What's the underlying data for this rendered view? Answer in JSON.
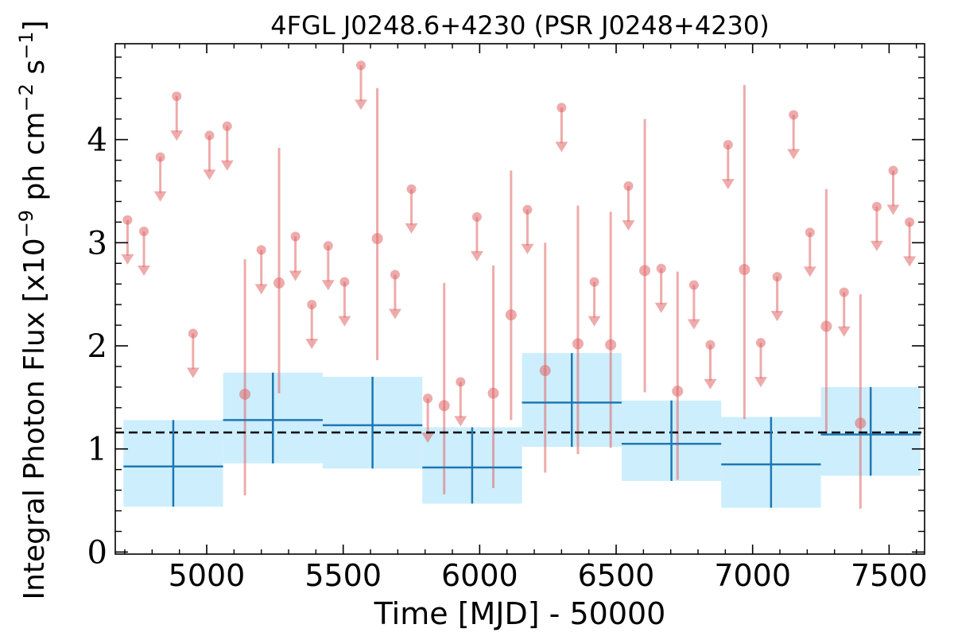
{
  "chart_data": {
    "type": "scatter",
    "title": "4FGL J0248.6+4230 (PSR J0248+4230)",
    "xlabel": "Time [MJD] - 50000",
    "ylabel_prefix": "Integral Photon Flux [x10",
    "ylabel_exp1": "−9",
    "ylabel_mid": " ph cm",
    "ylabel_exp2": "−2",
    "ylabel_mid2": " s",
    "ylabel_exp3": "−1",
    "ylabel_suffix": "]",
    "xlim": [
      4665,
      7630
    ],
    "ylim": [
      -0.02,
      4.93
    ],
    "xticks": [
      5000,
      5500,
      6000,
      6500,
      7000,
      7500
    ],
    "yticks": [
      0,
      1,
      2,
      3,
      4
    ],
    "average_flux": 1.16,
    "long_bins": [
      {
        "x0": 4695,
        "x1": 5060,
        "value": 0.83,
        "low": 0.44,
        "high": 1.28
      },
      {
        "x0": 5060,
        "x1": 5425,
        "value": 1.28,
        "low": 0.86,
        "high": 1.74
      },
      {
        "x0": 5425,
        "x1": 5790,
        "value": 1.23,
        "low": 0.81,
        "high": 1.7
      },
      {
        "x0": 5790,
        "x1": 6155,
        "value": 0.82,
        "low": 0.47,
        "high": 1.21
      },
      {
        "x0": 6155,
        "x1": 6520,
        "value": 1.45,
        "low": 1.02,
        "high": 1.93
      },
      {
        "x0": 6520,
        "x1": 6885,
        "value": 1.05,
        "low": 0.69,
        "high": 1.47
      },
      {
        "x0": 6885,
        "x1": 7250,
        "value": 0.85,
        "low": 0.43,
        "high": 1.31
      },
      {
        "x0": 7250,
        "x1": 7615,
        "value": 1.14,
        "low": 0.74,
        "high": 1.6
      }
    ],
    "upper_limits": [
      {
        "x": 4710,
        "value": 3.22
      },
      {
        "x": 4770,
        "value": 3.11
      },
      {
        "x": 4830,
        "value": 3.83
      },
      {
        "x": 4890,
        "value": 4.42
      },
      {
        "x": 4950,
        "value": 2.12
      },
      {
        "x": 5010,
        "value": 4.04
      },
      {
        "x": 5075,
        "value": 4.13
      },
      {
        "x": 5200,
        "value": 2.93
      },
      {
        "x": 5325,
        "value": 3.06
      },
      {
        "x": 5385,
        "value": 2.4
      },
      {
        "x": 5445,
        "value": 2.97
      },
      {
        "x": 5505,
        "value": 2.62
      },
      {
        "x": 5565,
        "value": 4.72
      },
      {
        "x": 5690,
        "value": 2.69
      },
      {
        "x": 5750,
        "value": 3.52
      },
      {
        "x": 5810,
        "value": 1.49
      },
      {
        "x": 5930,
        "value": 1.65
      },
      {
        "x": 5990,
        "value": 3.25
      },
      {
        "x": 6175,
        "value": 3.32
      },
      {
        "x": 6300,
        "value": 4.31
      },
      {
        "x": 6420,
        "value": 2.62
      },
      {
        "x": 6545,
        "value": 3.55
      },
      {
        "x": 6665,
        "value": 2.75
      },
      {
        "x": 6785,
        "value": 2.59
      },
      {
        "x": 6845,
        "value": 2.01
      },
      {
        "x": 6910,
        "value": 3.95
      },
      {
        "x": 7030,
        "value": 2.03
      },
      {
        "x": 7090,
        "value": 2.67
      },
      {
        "x": 7150,
        "value": 4.24
      },
      {
        "x": 7210,
        "value": 3.1
      },
      {
        "x": 7335,
        "value": 2.52
      },
      {
        "x": 7455,
        "value": 3.35
      },
      {
        "x": 7515,
        "value": 3.7
      },
      {
        "x": 7575,
        "value": 3.2
      }
    ],
    "detections": [
      {
        "x": 5140,
        "value": 1.53,
        "low": 0.55,
        "high": 2.84
      },
      {
        "x": 5265,
        "value": 2.61,
        "low": 1.54,
        "high": 3.92
      },
      {
        "x": 5625,
        "value": 3.04,
        "low": 1.86,
        "high": 4.5
      },
      {
        "x": 5870,
        "value": 1.42,
        "low": 0.56,
        "high": 2.61
      },
      {
        "x": 6050,
        "value": 1.54,
        "low": 0.62,
        "high": 2.78
      },
      {
        "x": 6115,
        "value": 2.3,
        "low": 1.28,
        "high": 3.7
      },
      {
        "x": 6240,
        "value": 1.76,
        "low": 0.77,
        "high": 3.0
      },
      {
        "x": 6360,
        "value": 2.02,
        "low": 0.95,
        "high": 3.36
      },
      {
        "x": 6480,
        "value": 2.01,
        "low": 1.01,
        "high": 3.3
      },
      {
        "x": 6605,
        "value": 2.73,
        "low": 1.55,
        "high": 4.2
      },
      {
        "x": 6725,
        "value": 1.56,
        "low": 0.7,
        "high": 2.72
      },
      {
        "x": 6970,
        "value": 2.74,
        "low": 1.29,
        "high": 4.53
      },
      {
        "x": 7270,
        "value": 2.19,
        "low": 1.13,
        "high": 3.52
      },
      {
        "x": 7395,
        "value": 1.25,
        "low": 0.42,
        "high": 2.5
      }
    ],
    "colors": {
      "long_bin_fill": "#cdeefc",
      "long_bin_line": "#1f77b4",
      "short_point": "#e06666",
      "average_line": "#000000"
    }
  }
}
